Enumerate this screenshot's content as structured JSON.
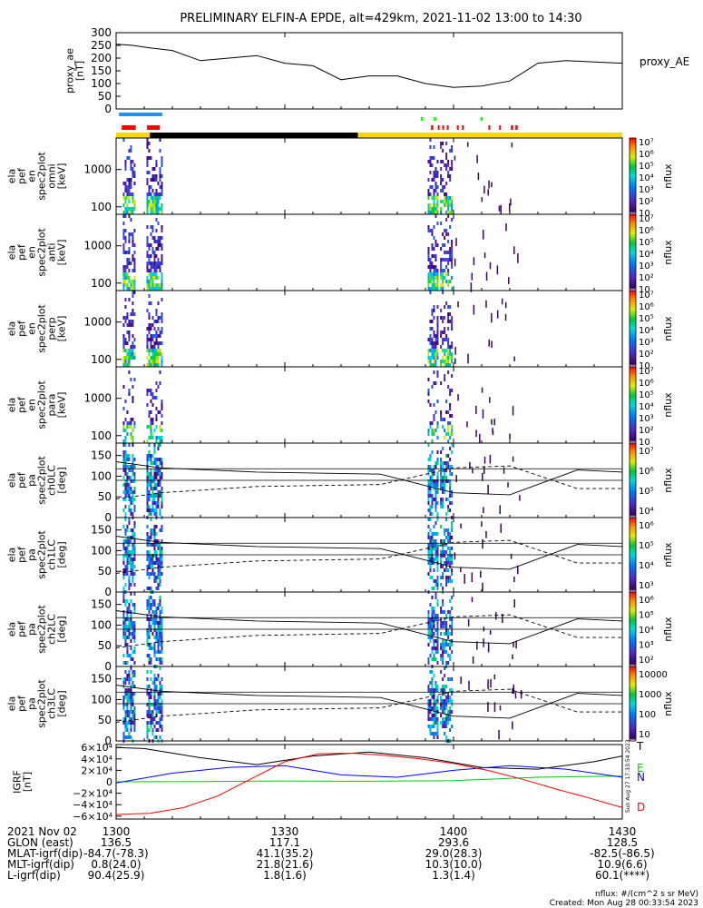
{
  "title": "PRELIMINARY ELFIN-A EPDE, alt=429km, 2021-11-02 13:00 to 14:30",
  "colors": {
    "science_bar_blue": "#1e90ff",
    "science_bar_red": "#ff0000",
    "science_bar_green": "#00ff00",
    "orbit_bar_yellow": "#ffd700",
    "orbit_bar_black": "#000000",
    "igrf_total": "#000000",
    "igrf_east": "#00cc00",
    "igrf_north": "#0000ff",
    "igrf_down": "#ff0000"
  },
  "chart_data": {
    "type": "line",
    "time_axis": {
      "range_minutes": [
        0,
        90
      ],
      "tick_labels": [
        "1300",
        "1330",
        "1400",
        "1430"
      ],
      "tick_minutes": [
        0,
        30,
        60,
        90
      ]
    },
    "ae_panel": {
      "ylabel": [
        "proxy_ae",
        "[nT]"
      ],
      "series_label": "proxy_AE",
      "ylim": [
        0,
        300
      ],
      "ytick_labels": [
        "0",
        "50",
        "100",
        "150",
        "200",
        "250",
        "300"
      ],
      "x": [
        0,
        3,
        6,
        10,
        15,
        20,
        25,
        30,
        35,
        40,
        45,
        50,
        55,
        60,
        65,
        70,
        75,
        80,
        85,
        90
      ],
      "values": [
        255,
        250,
        240,
        230,
        190,
        200,
        210,
        180,
        170,
        115,
        130,
        130,
        100,
        85,
        90,
        110,
        180,
        190,
        185,
        180
      ]
    },
    "science_zones": [
      {
        "color": "#1e90ff",
        "start": 0.5,
        "end": 8.2
      },
      {
        "color": "#ff0000",
        "start": 1.0,
        "end": 3.5
      },
      {
        "color": "#ff0000",
        "start": 5.5,
        "end": 7.8
      },
      {
        "color": "#00ff00",
        "start": 54.2,
        "end": 54.6
      },
      {
        "color": "#00ff00",
        "start": 56.5,
        "end": 56.9
      },
      {
        "color": "#00ff00",
        "start": 64.8,
        "end": 65.2
      },
      {
        "color": "#ff0000",
        "start": 56.0,
        "end": 56.4
      },
      {
        "color": "#ff0000",
        "start": 57.2,
        "end": 57.5
      },
      {
        "color": "#ff0000",
        "start": 58.0,
        "end": 58.3
      },
      {
        "color": "#ff0000",
        "start": 58.8,
        "end": 59.1
      },
      {
        "color": "#ff0000",
        "start": 60.6,
        "end": 60.9
      },
      {
        "color": "#ff0000",
        "start": 61.5,
        "end": 61.8
      },
      {
        "color": "#ff0000",
        "start": 66.2,
        "end": 66.5
      },
      {
        "color": "#ff0000",
        "start": 68.1,
        "end": 68.4
      },
      {
        "color": "#ff0000",
        "start": 70.2,
        "end": 70.6
      },
      {
        "color": "#ff0000",
        "start": 71.0,
        "end": 71.4
      }
    ],
    "orbit_bar": [
      {
        "color": "#ffd700",
        "start": 0,
        "end": 6
      },
      {
        "color": "#000000",
        "start": 6,
        "end": 43
      },
      {
        "color": "#ffd700",
        "start": 43,
        "end": 90
      }
    ],
    "energy_panels": [
      {
        "ylabel": [
          "ela",
          "pef",
          "en",
          "spec2plot",
          "omni",
          "[keV]"
        ],
        "zlim_exp": [
          1,
          7
        ]
      },
      {
        "ylabel": [
          "ela",
          "pef",
          "en",
          "spec2plot",
          "anti",
          "[keV]"
        ],
        "zlim_exp": [
          1,
          7
        ]
      },
      {
        "ylabel": [
          "ela",
          "pef",
          "en",
          "spec2plot",
          "perp",
          "[keV]"
        ],
        "zlim_exp": [
          1,
          7
        ]
      },
      {
        "ylabel": [
          "ela",
          "pef",
          "en",
          "spec2plot",
          "para",
          "[keV]"
        ],
        "zlim_exp": [
          1,
          7
        ]
      }
    ],
    "energy_ytick_labels": [
      "100",
      "1000"
    ],
    "energy_ytick_values": [
      100,
      1000
    ],
    "energy_ylim": [
      63,
      7000
    ],
    "pa_panels": [
      {
        "ylabel": [
          "ela",
          "pef",
          "pa",
          "spec2plot",
          "ch0LC",
          "[deg]"
        ],
        "zlim_exp": [
          4,
          7
        ],
        "colorbar_labels": [
          "10⁴",
          "10⁵",
          "10⁶",
          "10⁷"
        ]
      },
      {
        "ylabel": [
          "ela",
          "pef",
          "pa",
          "spec2plot",
          "ch1LC",
          "[deg]"
        ],
        "zlim_exp": [
          3,
          6
        ],
        "colorbar_labels": [
          "10³",
          "10⁴",
          "10⁵",
          "10⁶"
        ]
      },
      {
        "ylabel": [
          "ela",
          "pef",
          "pa",
          "spec2plot",
          "ch2LC",
          "[deg]"
        ],
        "zlim_exp": [
          2,
          6
        ],
        "colorbar_labels": [
          "10²",
          "10³",
          "10⁴",
          "10⁵",
          "10⁶"
        ]
      },
      {
        "ylabel": [
          "ela",
          "pef",
          "pa",
          "spec2plot",
          "ch3LC",
          "[deg]"
        ],
        "zlim_exp": [
          1,
          4
        ],
        "colorbar_labels": [
          "10",
          "100",
          "1000",
          "10000"
        ]
      }
    ],
    "pa_ytick_labels": [
      "0",
      "50",
      "100",
      "150"
    ],
    "pa_ytick_values": [
      0,
      50,
      100,
      150
    ],
    "pa_ylim": [
      0,
      180
    ],
    "loss_cone": {
      "x": [
        0,
        8,
        25,
        47,
        60,
        70,
        82,
        90
      ],
      "values": [
        135,
        120,
        110,
        105,
        60,
        55,
        115,
        110
      ]
    },
    "anti_loss_cone": {
      "x": [
        0,
        8,
        25,
        47,
        60,
        70,
        82,
        90
      ],
      "values": [
        45,
        60,
        75,
        80,
        120,
        125,
        70,
        70
      ]
    },
    "lc_reference_levels": [
      90,
      118
    ],
    "flux_colorbar_title": "nflux",
    "energy_colorbar_labels": [
      "10⁷",
      "10⁶",
      "10⁵",
      "10⁴",
      "10³",
      "10²",
      "10"
    ],
    "igrf_panel": {
      "ylabel": [
        "IGRF",
        "[nT]"
      ],
      "ylim": [
        -65000,
        65000
      ],
      "ytick_labels": [
        "6×10⁴",
        "4×10⁴",
        "2×10⁴",
        "0",
        "−2×10⁴",
        "−4×10⁴",
        "−6×10⁴"
      ],
      "ytick_values": [
        60000,
        40000,
        20000,
        0,
        -20000,
        -40000,
        -60000
      ],
      "series": [
        {
          "name": "T",
          "color": "#000000",
          "x": [
            0,
            5,
            15,
            25,
            35,
            45,
            55,
            65,
            75,
            85,
            90
          ],
          "values": [
            60000,
            58000,
            42000,
            30000,
            45000,
            52000,
            42000,
            25000,
            22000,
            35000,
            45000
          ]
        },
        {
          "name": "E",
          "color": "#00cc00",
          "x": [
            0,
            15,
            30,
            45,
            60,
            75,
            90
          ],
          "values": [
            0,
            500,
            1500,
            1000,
            2000,
            8000,
            10000
          ]
        },
        {
          "name": "N",
          "color": "#0000ff",
          "x": [
            0,
            10,
            20,
            30,
            40,
            50,
            60,
            70,
            80,
            90
          ],
          "values": [
            -2000,
            15000,
            25000,
            28000,
            12000,
            8000,
            20000,
            28000,
            22000,
            8000
          ]
        },
        {
          "name": "D",
          "color": "#ff0000",
          "x": [
            0,
            6,
            12,
            18,
            24,
            30,
            36,
            42,
            48,
            54,
            60,
            66,
            72,
            78,
            84,
            90
          ],
          "values": [
            -57000,
            -55000,
            -45000,
            -25000,
            5000,
            35000,
            49000,
            50000,
            46000,
            40000,
            32000,
            20000,
            5000,
            -12000,
            -28000,
            -45000
          ]
        }
      ]
    }
  },
  "footer": {
    "rows": [
      {
        "label": "2021 Nov 02",
        "values": [
          "1300",
          "1330",
          "1400",
          "1430"
        ]
      },
      {
        "label": "GLON (east)",
        "values": [
          "136.5",
          "117.1",
          "293.6",
          "128.5"
        ]
      },
      {
        "label": "MLAT-igrf(dip)",
        "values": [
          "-84.7(-78.3)",
          "41.1(35.2)",
          "29.0(28.3)",
          "-82.5(-86.5)"
        ]
      },
      {
        "label": "MLT-igrf(dip)",
        "values": [
          "0.8(24.0)",
          "21.8(21.6)",
          "10.3(10.0)",
          "10.9(6.6)"
        ]
      },
      {
        "label": "L-igrf(dip)",
        "values": [
          "90.4(25.9)",
          "1.8(1.6)",
          "1.3(1.4)",
          "60.1(****)"
        ]
      }
    ],
    "units_note": "nflux: #/(cm^2 s sr MeV)",
    "created": "Created: Mon Aug 28 00:33:54 2023",
    "side_stamp": "Sun Aug 27 17:33:54 2023"
  }
}
